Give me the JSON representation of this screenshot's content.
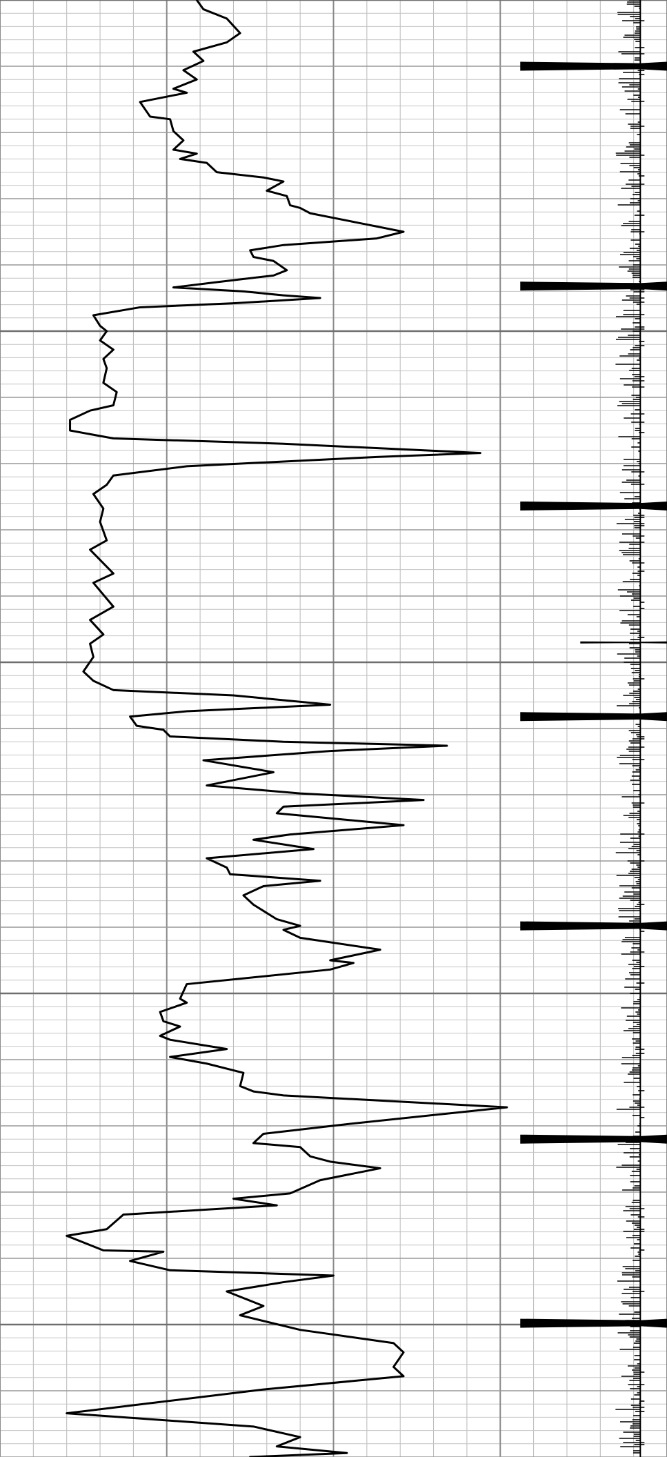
{
  "chart_data": {
    "type": "log",
    "orientation": "vertical",
    "xlim": [
      0,
      20
    ],
    "xticks": [
      0,
      5,
      10,
      15,
      20
    ],
    "ylim": [
      0,
      110
    ],
    "yticks": [
      0,
      5,
      10,
      15,
      20,
      25,
      30,
      35,
      40,
      45,
      50,
      55,
      60,
      65,
      70,
      75,
      80,
      85,
      90,
      95,
      100,
      105,
      110
    ],
    "heavy_grid_every": 25,
    "minor_grid": true,
    "grid": true,
    "baseline": 19.2,
    "series": [
      {
        "color": "#000000",
        "depth": [
          0,
          0.7,
          1.4,
          2.5,
          3.2,
          3.9,
          4.6,
          5.3,
          6.0,
          6.7,
          7.0,
          7.7,
          8.8,
          9.0,
          9.9,
          10.6,
          11.3,
          11.6,
          12.0,
          12.3,
          13.0,
          13.4,
          13.7,
          14.4,
          14.8,
          15.5,
          15.7,
          16.1,
          16.8,
          17.5,
          18.0,
          18.5,
          18.9,
          19.4,
          19.7,
          20.4,
          20.8,
          21.3,
          21.7,
          22.0,
          22.3,
          22.5,
          22.9,
          23.2,
          23.8,
          24.6,
          25.0,
          25.7,
          26.4,
          27.1,
          27.8,
          28.9,
          29.6,
          30.6,
          31.0,
          31.7,
          32.5,
          33.1,
          33.5,
          34.2,
          34.5,
          35.2,
          35.9,
          36.6,
          37.3,
          38.4,
          39.4,
          40.8,
          41.5,
          43.3,
          44.0,
          45.8,
          46.8,
          47.9,
          48.6,
          49.6,
          50.7,
          51.4,
          52.1,
          52.5,
          53.2,
          53.7,
          54.1,
          54.8,
          55.1,
          55.6,
          56.0,
          56.3,
          56.7,
          57.4,
          58.3,
          59.3,
          59.9,
          60.4,
          60.9,
          61.4,
          62.3,
          63.0,
          63.4,
          64.1,
          64.8,
          65.5,
          66.0,
          66.5,
          66.9,
          67.6,
          68.3,
          69.4,
          69.9,
          70.2,
          70.8,
          71.7,
          72.5,
          72.7,
          73.2,
          74.3,
          75.4,
          75.7,
          76.4,
          77.1,
          77.5,
          78.2,
          78.5,
          79.2,
          79.8,
          80.3,
          81.0,
          82.0,
          82.4,
          82.7,
          83.6,
          84.9,
          85.6,
          86.3,
          86.6,
          87.3,
          87.7,
          88.2,
          89.1,
          90.1,
          90.5,
          91.0,
          91.7,
          92.8,
          93.3,
          94.4,
          94.5,
          95.2,
          95.9,
          96.3,
          96.8,
          97.5,
          98.6,
          99.3,
          100.4,
          101.4,
          102.1,
          103.2,
          103.9,
          104.9,
          106.7,
          107.7,
          108.5,
          109.2,
          109.7,
          110.0
        ],
        "values": [
          5.9,
          6.1,
          6.8,
          7.2,
          6.8,
          5.8,
          6.1,
          5.5,
          5.9,
          5.2,
          5.6,
          4.2,
          4.5,
          5.1,
          5.2,
          5.5,
          5.2,
          5.9,
          5.4,
          6.2,
          6.5,
          7.9,
          8.5,
          8.0,
          8.6,
          8.7,
          9.0,
          9.3,
          10.7,
          12.1,
          11.3,
          8.5,
          7.5,
          7.6,
          8.2,
          8.6,
          8.2,
          6.5,
          5.2,
          7.3,
          8.5,
          9.6,
          7.0,
          4.2,
          2.8,
          3.0,
          3.2,
          3.0,
          3.4,
          3.1,
          3.2,
          3.1,
          3.5,
          3.4,
          2.7,
          2.1,
          2.1,
          3.4,
          8.5,
          14.4,
          11.3,
          5.6,
          3.4,
          3.2,
          2.8,
          3.1,
          3.0,
          3.2,
          2.7,
          3.4,
          2.8,
          3.4,
          2.7,
          3.1,
          2.7,
          2.8,
          2.5,
          2.8,
          3.4,
          7.0,
          9.9,
          5.6,
          3.9,
          4.1,
          4.9,
          5.1,
          8.5,
          13.4,
          9.9,
          6.1,
          8.2,
          6.2,
          9.0,
          12.7,
          8.5,
          8.3,
          12.1,
          8.7,
          7.6,
          9.4,
          6.2,
          6.8,
          6.9,
          9.6,
          7.9,
          7.3,
          7.6,
          8.3,
          9.0,
          8.5,
          9.0,
          11.4,
          9.9,
          10.6,
          9.9,
          5.6,
          5.4,
          5.6,
          4.8,
          4.9,
          5.4,
          4.8,
          5.1,
          6.8,
          5.1,
          6.2,
          7.3,
          7.2,
          7.6,
          8.5,
          15.2,
          10.3,
          7.9,
          7.6,
          9.0,
          9.3,
          9.9,
          11.4,
          9.6,
          8.7,
          7.0,
          8.3,
          3.7,
          3.2,
          2.0,
          3.1,
          4.9,
          3.9,
          5.1,
          10.0,
          8.5,
          6.8,
          7.9,
          7.2,
          9.0,
          11.8,
          12.1,
          11.8,
          12.1,
          7.9,
          2.0,
          7.6,
          9.0,
          8.3,
          10.4,
          7.5
        ]
      },
      {
        "color": "#000000",
        "depth": [
          5.0,
          21.6,
          38.2,
          48.5,
          54.1,
          69.9,
          86.0,
          99.9
        ],
        "values": [
          15.6,
          15.6,
          15.6,
          17.4,
          15.6,
          15.6,
          15.6,
          15.6
        ]
      }
    ]
  }
}
